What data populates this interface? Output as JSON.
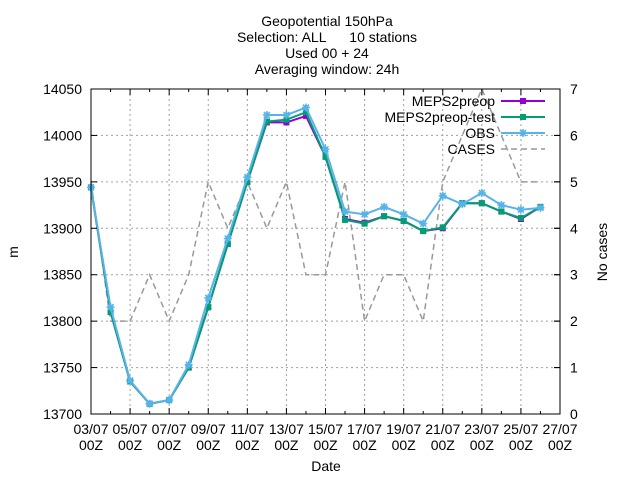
{
  "chart_data": {
    "type": "line",
    "title_lines": [
      "Geopotential 150hPa",
      "Selection: ALL      10 stations",
      "Used 00 + 24",
      "Averaging window: 24h"
    ],
    "xlabel": "Date",
    "ylabel": "m",
    "y2label": "No cases",
    "xlim": [
      0,
      24
    ],
    "ylim": [
      13700,
      14050
    ],
    "y2lim": [
      0,
      7
    ],
    "grid": true,
    "legend_position": "top-right",
    "x_tick_labels": [
      {
        "x": 0,
        "l1": "03/07",
        "l2": "00Z"
      },
      {
        "x": 2,
        "l1": "05/07",
        "l2": "00Z"
      },
      {
        "x": 4,
        "l1": "07/07",
        "l2": "00Z"
      },
      {
        "x": 6,
        "l1": "09/07",
        "l2": "00Z"
      },
      {
        "x": 8,
        "l1": "11/07",
        "l2": "00Z"
      },
      {
        "x": 10,
        "l1": "13/07",
        "l2": "00Z"
      },
      {
        "x": 12,
        "l1": "15/07",
        "l2": "00Z"
      },
      {
        "x": 14,
        "l1": "17/07",
        "l2": "00Z"
      },
      {
        "x": 16,
        "l1": "19/07",
        "l2": "00Z"
      },
      {
        "x": 18,
        "l1": "21/07",
        "l2": "00Z"
      },
      {
        "x": 20,
        "l1": "23/07",
        "l2": "00Z"
      },
      {
        "x": 22,
        "l1": "25/07",
        "l2": "00Z"
      },
      {
        "x": 24,
        "l1": "27/07",
        "l2": "00Z"
      }
    ],
    "y_ticks": [
      13700,
      13750,
      13800,
      13850,
      13900,
      13950,
      14000,
      14050
    ],
    "y2_ticks": [
      0,
      1,
      2,
      3,
      4,
      5,
      6,
      7
    ],
    "series": [
      {
        "name": "MEPS2preop",
        "color": "#9400d3",
        "marker": "square",
        "axis": "y",
        "x": [
          0,
          1,
          2,
          3,
          4,
          5,
          6,
          7,
          8,
          9,
          10,
          11,
          12,
          13,
          14,
          15,
          16,
          17,
          18,
          19,
          20,
          21,
          22,
          23
        ],
        "values": [
          13944,
          13810,
          13735,
          13711,
          13715,
          13750,
          13815,
          13883,
          13950,
          14014,
          14014,
          14021,
          13977,
          13910,
          13906,
          13913,
          13908,
          13897,
          13900,
          13927,
          13927,
          13918,
          13910,
          13923
        ]
      },
      {
        "name": "MEPS2preop-test",
        "color": "#009e73",
        "marker": "square",
        "axis": "y",
        "x": [
          0,
          1,
          2,
          3,
          4,
          5,
          6,
          7,
          8,
          9,
          10,
          11,
          12,
          13,
          14,
          15,
          16,
          17,
          18,
          19,
          20,
          21,
          22,
          23
        ],
        "values": [
          13944,
          13810,
          13735,
          13711,
          13715,
          13750,
          13815,
          13883,
          13950,
          14015,
          14017,
          14025,
          13977,
          13909,
          13905,
          13913,
          13908,
          13897,
          13901,
          13927,
          13927,
          13918,
          13911,
          13923
        ]
      },
      {
        "name": "OBS",
        "color": "#56b4e9",
        "marker": "star",
        "axis": "y",
        "x": [
          0,
          1,
          2,
          3,
          4,
          5,
          6,
          7,
          8,
          9,
          10,
          11,
          12,
          13,
          14,
          15,
          16,
          17,
          18,
          19,
          20,
          21,
          22,
          23
        ],
        "values": [
          13944,
          13815,
          13736,
          13711,
          13715,
          13753,
          13825,
          13889,
          13955,
          14022,
          14022,
          14030,
          13985,
          13918,
          13915,
          13923,
          13915,
          13905,
          13935,
          13926,
          13938,
          13925,
          13920,
          13922
        ]
      },
      {
        "name": "CASES",
        "color": "#999999",
        "dashed": true,
        "axis": "y2",
        "x": [
          0,
          1,
          2,
          3,
          4,
          5,
          6,
          7,
          8,
          9,
          10,
          11,
          12,
          13,
          14,
          15,
          16,
          17,
          18,
          19,
          20,
          21,
          22,
          23
        ],
        "values": [
          5,
          2,
          2,
          3,
          2,
          3,
          5,
          4,
          5,
          4,
          5,
          3,
          3,
          5,
          2,
          3,
          3,
          2,
          5,
          6,
          7,
          6,
          5,
          5
        ]
      }
    ]
  }
}
